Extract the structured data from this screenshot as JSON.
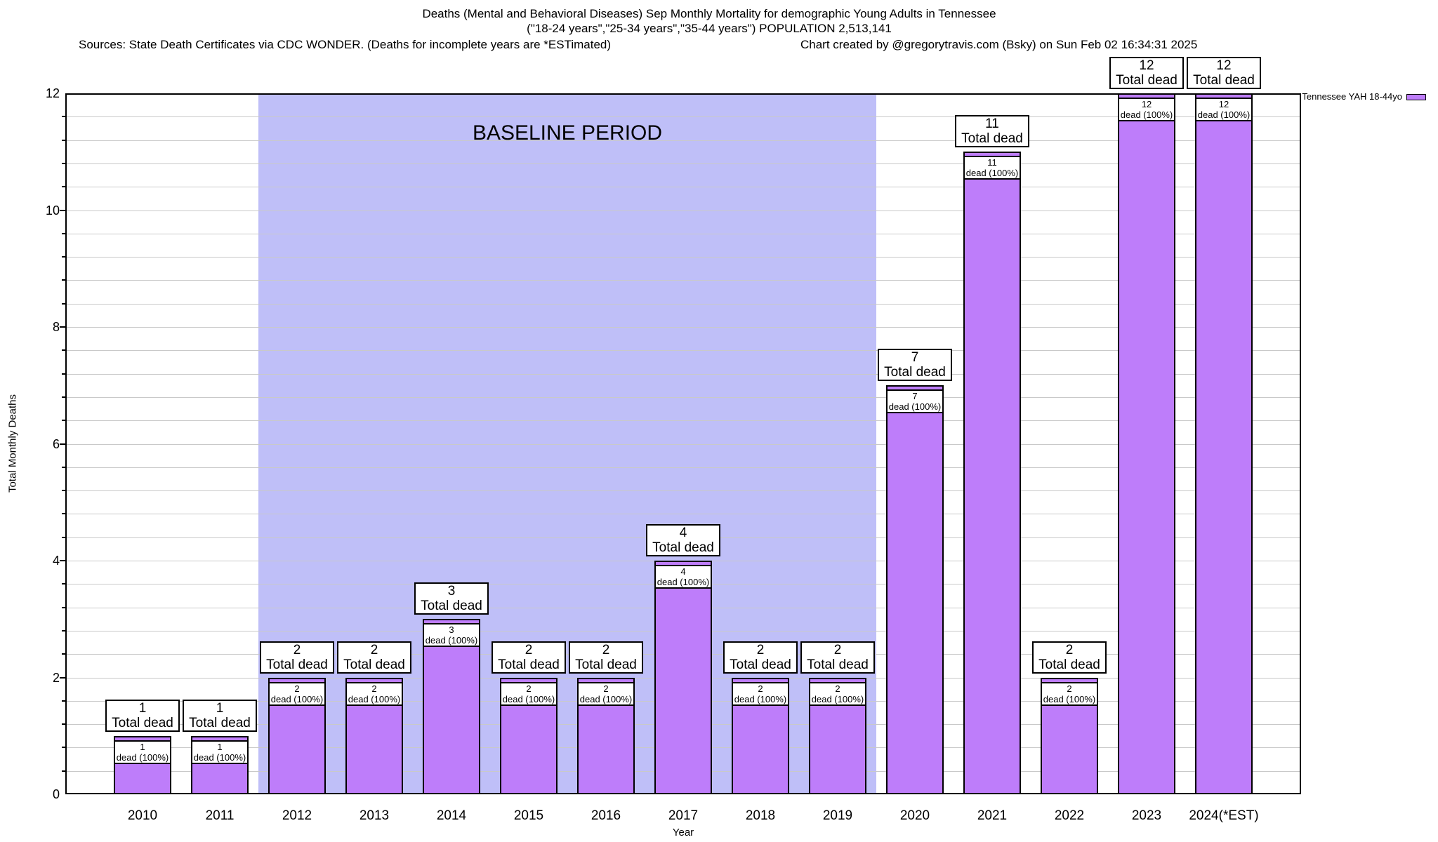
{
  "header": {
    "title_line1": "Deaths (Mental and Behavioral Diseases) Sep Monthly Mortality for demographic Young Adults in Tennessee",
    "title_line2": "(\"18-24 years\",\"25-34 years\",\"35-44 years\") POPULATION 2,513,141",
    "source_note": "Sources: State Death Certificates via CDC WONDER. (Deaths for incomplete years are *ESTimated)",
    "credit_note": "Chart created by @gregorytravis.com (Bsky) on Sun Feb 02 16:34:31 2025"
  },
  "legend": {
    "label": "Tennessee YAH 18-44yo",
    "swatch_color": "#BE7DFA"
  },
  "chart_data": {
    "type": "bar",
    "title": "Deaths (Mental and Behavioral Diseases) Sep Monthly Mortality for demographic Young Adults in Tennessee",
    "subtitle": "(\"18-24 years\",\"25-34 years\",\"35-44 years\") POPULATION 2,513,141",
    "source_note": "Sources: State Death Certificates via CDC WONDER. (Deaths for incomplete years are *ESTimated)",
    "credit_note": "Chart created by @gregorytravis.com (Bsky) on Sun Feb 02 16:34:31 2025",
    "categories": [
      "2010",
      "2011",
      "2012",
      "2013",
      "2014",
      "2015",
      "2016",
      "2017",
      "2018",
      "2019",
      "2020",
      "2021",
      "2022",
      "2023",
      "2024(*EST)"
    ],
    "series": [
      {
        "name": "Tennessee YAH 18-44yo",
        "values": [
          1,
          1,
          2,
          2,
          3,
          2,
          2,
          4,
          2,
          2,
          7,
          11,
          2,
          12,
          12
        ]
      }
    ],
    "xlabel": "Year",
    "ylabel": "Total Monthly Deaths",
    "ylim": [
      0,
      12
    ],
    "yticks": [
      0,
      2,
      4,
      6,
      8,
      10,
      12
    ],
    "minor_grid_step": 0.4,
    "grid": true,
    "legend_position": "top-right",
    "x_start_year": 2010,
    "bar_color": "#BE7DFA",
    "bar_border_color": "#000000",
    "gridline_color": "#C9C9C9",
    "background_color": "#FFFFFF",
    "baseline_band": {
      "label": "BASELINE PERIOD",
      "x_start": 2011.5,
      "x_end": 2019.5,
      "label_x": 2015.5,
      "label_y": 11.32,
      "color": "#BFBFF8"
    },
    "bar_top_label_suffix": "Total dead",
    "bar_inner_label_suffix": "dead (100%)"
  }
}
